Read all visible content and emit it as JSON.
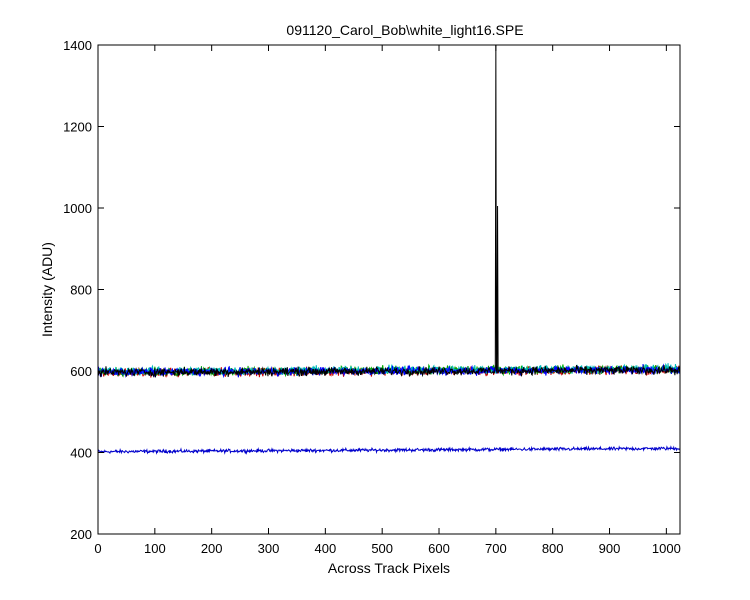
{
  "chart_data": {
    "type": "line",
    "title": "091120_Carol_Bob\\white_light16.SPE",
    "xlabel": "Across Track Pixels",
    "ylabel": "Intensity (ADU)",
    "xlim": [
      0,
      1024
    ],
    "ylim": [
      200,
      1400
    ],
    "xticks": [
      0,
      100,
      200,
      300,
      400,
      500,
      600,
      700,
      800,
      900,
      1000
    ],
    "yticks": [
      200,
      400,
      600,
      800,
      1000,
      1200,
      1400
    ],
    "grid": false,
    "legend": "none",
    "series": [
      {
        "color": "#0000cc",
        "noise_amplitude": 4,
        "trend": {
          "x": [
            0,
            1024
          ],
          "y": [
            402,
            410
          ]
        }
      },
      {
        "color": "#cc0000",
        "noise_amplitude": 10,
        "trend": {
          "x": [
            0,
            1024
          ],
          "y": [
            596,
            602
          ]
        }
      },
      {
        "color": "#00aa00",
        "noise_amplitude": 10,
        "trend": {
          "x": [
            0,
            1024
          ],
          "y": [
            598,
            605
          ]
        }
      },
      {
        "color": "#00bbbb",
        "noise_amplitude": 10,
        "trend": {
          "x": [
            0,
            1024
          ],
          "y": [
            599,
            606
          ]
        }
      },
      {
        "color": "#0000ff",
        "noise_amplitude": 10,
        "trend": {
          "x": [
            0,
            1024
          ],
          "y": [
            597,
            603
          ]
        }
      },
      {
        "color": "#000000",
        "noise_amplitude": 10,
        "trend": {
          "x": [
            0,
            1024
          ],
          "y": [
            597,
            602
          ]
        },
        "spikes": [
          {
            "x": 700,
            "y": 1400
          },
          {
            "x": 703,
            "y": 1005
          }
        ]
      }
    ]
  }
}
